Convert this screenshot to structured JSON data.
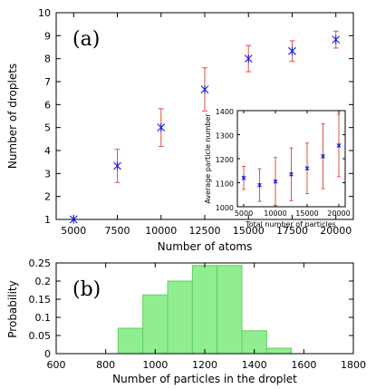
{
  "chart_data": [
    {
      "type": "scatter",
      "panel_label": "(a)",
      "xlabel": "Number of atoms",
      "ylabel": "Number of droplets",
      "xlim": [
        4000,
        21000
      ],
      "ylim": [
        1,
        10
      ],
      "xticks": [
        5000,
        7500,
        10000,
        12500,
        15000,
        17500,
        20000
      ],
      "yticks": [
        1,
        2,
        3,
        4,
        5,
        6,
        7,
        8,
        9,
        10
      ],
      "marker_color": "#1a1adc",
      "errorbar_color": "#e05050",
      "points": [
        {
          "x": 5000,
          "y": 1.0,
          "err": 0
        },
        {
          "x": 7500,
          "y": 3.33,
          "err": 0.72
        },
        {
          "x": 10000,
          "y": 5.0,
          "err": 0.82
        },
        {
          "x": 12500,
          "y": 6.66,
          "err": 0.94
        },
        {
          "x": 15000,
          "y": 8.0,
          "err": 0.57
        },
        {
          "x": 17500,
          "y": 8.33,
          "err": 0.45
        },
        {
          "x": 20000,
          "y": 8.83,
          "err": 0.37
        }
      ]
    },
    {
      "type": "scatter",
      "inset": true,
      "xlabel": "Total number of particles",
      "ylabel": "Average particle number",
      "xlim": [
        4000,
        21000
      ],
      "ylim": [
        1000,
        1400
      ],
      "xticks": [
        5000,
        10000,
        15000,
        20000
      ],
      "yticks": [
        1000,
        1100,
        1200,
        1300,
        1400
      ],
      "points": [
        {
          "x": 5000,
          "y": 1120,
          "err": 48
        },
        {
          "x": 7500,
          "y": 1090,
          "err": 68
        },
        {
          "x": 10000,
          "y": 1105,
          "err": 100
        },
        {
          "x": 12500,
          "y": 1135,
          "err": 110
        },
        {
          "x": 15000,
          "y": 1160,
          "err": 105
        },
        {
          "x": 17500,
          "y": 1210,
          "err": 135
        },
        {
          "x": 20000,
          "y": 1255,
          "err": 130
        }
      ]
    },
    {
      "type": "bar",
      "panel_label": "(b)",
      "xlabel": "Number of particles in the droplet",
      "ylabel": "Probability",
      "xlim": [
        600,
        1800
      ],
      "ylim": [
        0,
        0.25
      ],
      "xticks": [
        600,
        800,
        1000,
        1200,
        1400,
        1600,
        1800
      ],
      "yticks": [
        0,
        0.05,
        0.1,
        0.15,
        0.2,
        0.25
      ],
      "bar_color": "#90ee90",
      "bar_edge_color": "#5fcf5f",
      "bins": [
        {
          "start": 850,
          "end": 950,
          "value": 0.07
        },
        {
          "start": 950,
          "end": 1050,
          "value": 0.162
        },
        {
          "start": 1050,
          "end": 1150,
          "value": 0.2
        },
        {
          "start": 1150,
          "end": 1250,
          "value": 0.243
        },
        {
          "start": 1250,
          "end": 1350,
          "value": 0.243
        },
        {
          "start": 1350,
          "end": 1450,
          "value": 0.063
        },
        {
          "start": 1450,
          "end": 1550,
          "value": 0.015
        }
      ]
    }
  ]
}
